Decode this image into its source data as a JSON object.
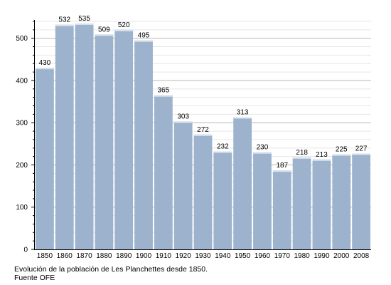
{
  "chart_data": {
    "type": "bar",
    "categories": [
      "1850",
      "1860",
      "1870",
      "1880",
      "1890",
      "1900",
      "1910",
      "1920",
      "1930",
      "1940",
      "1950",
      "1960",
      "1970",
      "1980",
      "1990",
      "2000",
      "2008"
    ],
    "values": [
      430,
      532,
      535,
      509,
      520,
      495,
      365,
      303,
      272,
      232,
      313,
      230,
      187,
      218,
      213,
      225,
      227
    ],
    "data_labels": [
      "430",
      "532",
      "535",
      "509",
      "520",
      "495",
      "365",
      "303",
      "272",
      "232",
      "313",
      "230",
      "187",
      "218",
      "213",
      "225",
      "227"
    ],
    "y_ticks": [
      "0",
      "100",
      "200",
      "300",
      "400",
      "500"
    ],
    "ylim": [
      0,
      540
    ],
    "grid": true,
    "title": "",
    "xlabel": "",
    "ylabel": "",
    "bar_color": "#9db3cd",
    "grid_color": "#cccccc"
  },
  "caption": {
    "line1": "Evolución de la población de Les Planchettes desde 1850.",
    "line2": "Fuente OFE"
  }
}
